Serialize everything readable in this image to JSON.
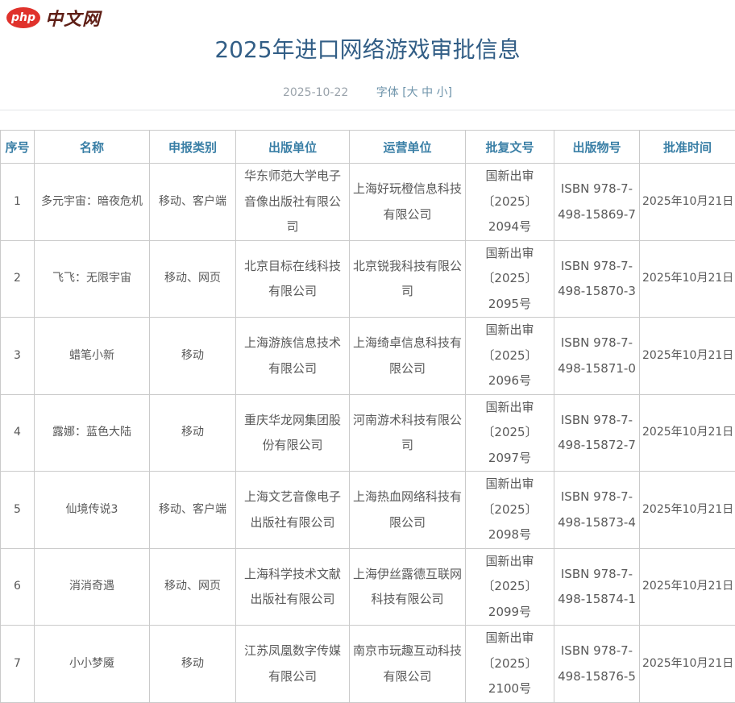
{
  "logo": {
    "php": "php",
    "site": "中文网"
  },
  "page": {
    "title": "2025年进口网络游戏审批信息",
    "date": "2025-10-22",
    "font_label": "字体",
    "font_sizes": "[大 中 小]"
  },
  "table": {
    "headers": [
      "序号",
      "名称",
      "申报类别",
      "出版单位",
      "运营单位",
      "批复文号",
      "出版物号",
      "批准时间"
    ],
    "rows": [
      [
        "1",
        "多元宇宙：暗夜危机",
        "移动、客户端",
        "华东师范大学电子音像出版社有限公司",
        "上海好玩橙信息科技有限公司",
        "国新出审〔2025〕2094号",
        "ISBN 978-7-498-15869-7",
        "2025年10月21日"
      ],
      [
        "2",
        "飞飞：无限宇宙",
        "移动、网页",
        "北京目标在线科技有限公司",
        "北京锐我科技有限公司",
        "国新出审〔2025〕2095号",
        "ISBN 978-7-498-15870-3",
        "2025年10月21日"
      ],
      [
        "3",
        "蜡笔小新",
        "移动",
        "上海游族信息技术有限公司",
        "上海绮卓信息科技有限公司",
        "国新出审〔2025〕2096号",
        "ISBN 978-7-498-15871-0",
        "2025年10月21日"
      ],
      [
        "4",
        "露娜：蓝色大陆",
        "移动",
        "重庆华龙网集团股份有限公司",
        "河南游术科技有限公司",
        "国新出审〔2025〕2097号",
        "ISBN 978-7-498-15872-7",
        "2025年10月21日"
      ],
      [
        "5",
        "仙境传说3",
        "移动、客户端",
        "上海文艺音像电子出版社有限公司",
        "上海热血网络科技有限公司",
        "国新出审〔2025〕2098号",
        "ISBN 978-7-498-15873-4",
        "2025年10月21日"
      ],
      [
        "6",
        "消消奇遇",
        "移动、网页",
        "上海科学技术文献出版社有限公司",
        "上海伊丝露德互联网科技有限公司",
        "国新出审〔2025〕2099号",
        "ISBN 978-7-498-15874-1",
        "2025年10月21日"
      ],
      [
        "7",
        "小小梦魇",
        "移动",
        "江苏凤凰数字传媒有限公司",
        "南京市玩趣互动科技有限公司",
        "国新出审〔2025〕2100号",
        "ISBN 978-7-498-15876-5",
        "2025年10月21日"
      ]
    ]
  },
  "colors": {
    "title_blue": "#325e86",
    "header_blue": "#3a7fa6",
    "logo_red": "#e0322c",
    "logo_text_maroon": "#5f1f16",
    "body_text": "#595959",
    "border_gray": "#cacaca",
    "meta_gray": "#9aa3ab",
    "meta_blue": "#6d93aa"
  }
}
